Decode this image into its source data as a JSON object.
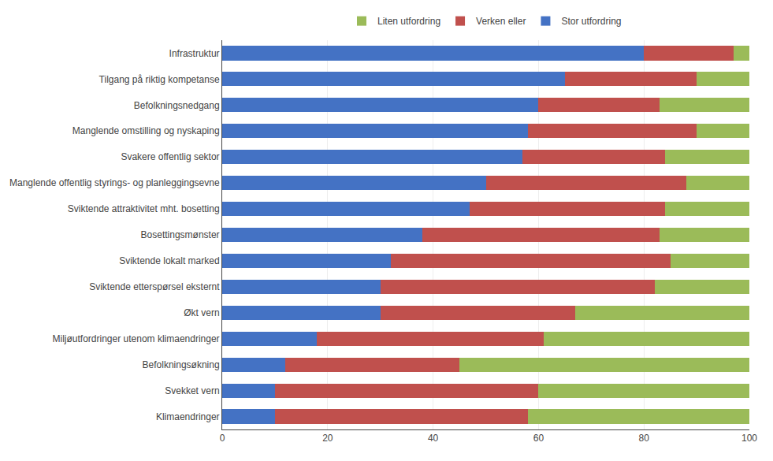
{
  "chart_data": {
    "type": "bar",
    "orientation": "horizontal",
    "stacked": true,
    "categories": [
      "Infrastruktur",
      "Tilgang på riktig kompetanse",
      "Befolkningsnedgang",
      "Manglende omstilling og nyskaping",
      "Svakere offentlig sektor",
      "Manglende offentlig styrings- og planleggingsevne",
      "Sviktende attraktivitet mht. bosetting",
      "Bosettingsmønster",
      "Sviktende lokalt marked",
      "Sviktende etterspørsel eksternt",
      "Økt vern",
      "Miljøutfordringer utenom klimaendringer",
      "Befolkningsøkning",
      "Svekket vern",
      "Klimaendringer"
    ],
    "series": [
      {
        "name": "Stor utfordring",
        "color": "#4472C4",
        "values": [
          80,
          65,
          60,
          58,
          57,
          50,
          47,
          38,
          32,
          30,
          30,
          18,
          12,
          10,
          10
        ]
      },
      {
        "name": "Verken eller",
        "color": "#C0504D",
        "values": [
          17,
          25,
          23,
          32,
          27,
          38,
          37,
          45,
          53,
          52,
          37,
          43,
          33,
          50,
          48
        ]
      },
      {
        "name": "Liten utfordring",
        "color": "#9BBB59",
        "values": [
          3,
          10,
          17,
          10,
          16,
          12,
          16,
          17,
          15,
          18,
          33,
          39,
          55,
          40,
          42
        ]
      }
    ],
    "xlim": [
      0,
      100
    ],
    "xticks": [
      0,
      20,
      40,
      60,
      80,
      100
    ],
    "grid": true,
    "legend": "top"
  }
}
